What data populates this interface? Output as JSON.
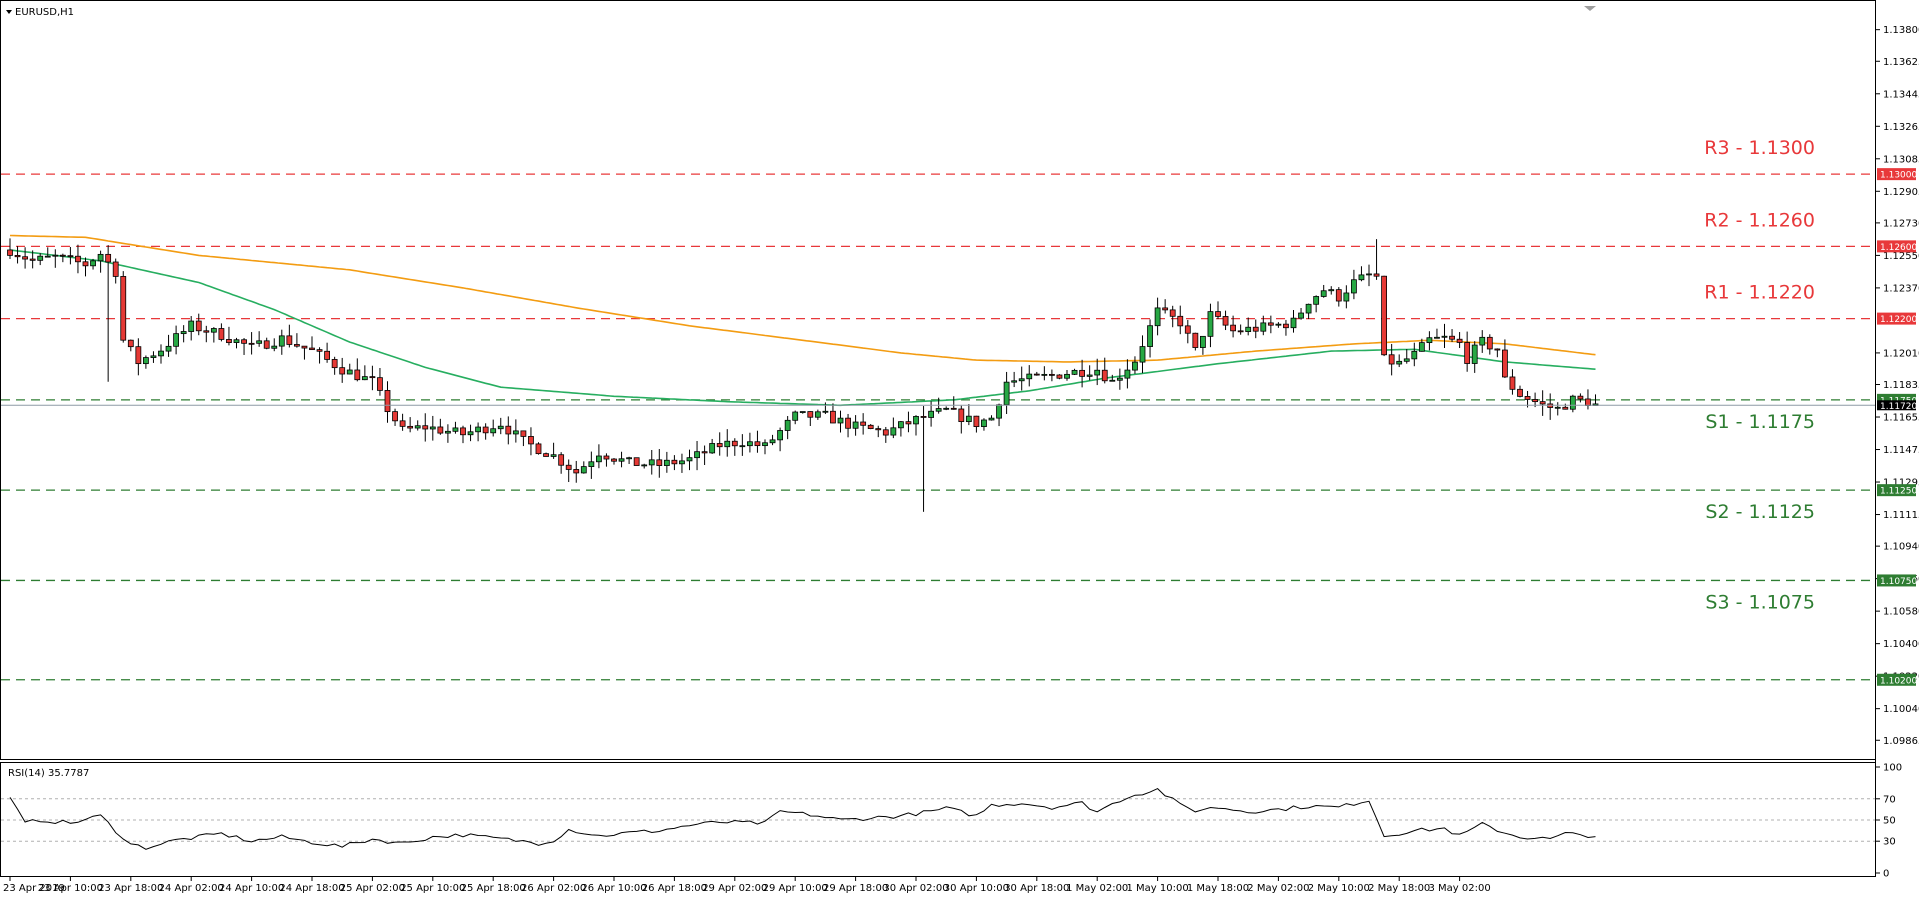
{
  "window": {
    "symbol_title": "EURUSD,H1"
  },
  "chart_data": {
    "type": "candlestick",
    "symbol": "EURUSD",
    "timeframe": "H1",
    "price_axis": {
      "ticks": [
        "1.13800",
        "1.13625",
        "1.13445",
        "1.13265",
        "1.13085",
        "1.12905",
        "1.12730",
        "1.12550",
        "1.12370",
        "1.12010",
        "1.11835",
        "1.11655",
        "1.11475",
        "1.11295",
        "1.11115",
        "1.10940",
        "1.10760",
        "1.10580",
        "1.10400",
        "1.10220",
        "1.10040",
        "1.09865"
      ],
      "range": [
        1.098,
        1.1392
      ]
    },
    "time_axis": {
      "labels": [
        "23 Apr 2019",
        "23 Apr 10:00",
        "23 Apr 18:00",
        "24 Apr 02:00",
        "24 Apr 10:00",
        "24 Apr 18:00",
        "25 Apr 02:00",
        "25 Apr 10:00",
        "25 Apr 18:00",
        "26 Apr 02:00",
        "26 Apr 10:00",
        "26 Apr 18:00",
        "29 Apr 02:00",
        "29 Apr 10:00",
        "29 Apr 18:00",
        "30 Apr 02:00",
        "30 Apr 10:00",
        "30 Apr 18:00",
        "1 May 02:00",
        "1 May 10:00",
        "1 May 18:00",
        "2 May 02:00",
        "2 May 10:00",
        "2 May 18:00",
        "3 May 02:00"
      ],
      "bars_per_label": 8,
      "bar_count": 202
    },
    "levels": [
      {
        "label": "R3 - 1.1300",
        "price": 1.13,
        "tag": "1.13000",
        "kind": "resistance",
        "color": "#e8383a"
      },
      {
        "label": "R2 - 1.1260",
        "price": 1.126,
        "tag": "1.12600",
        "kind": "resistance",
        "color": "#e8383a"
      },
      {
        "label": "R1 - 1.1220",
        "price": 1.122,
        "tag": "1.12200",
        "kind": "resistance",
        "color": "#e8383a"
      },
      {
        "label": "S1 - 1.1175",
        "price": 1.1175,
        "tag": "1.11750",
        "kind": "support",
        "color": "#2e7d32"
      },
      {
        "label": "S2 - 1.1125",
        "price": 1.1125,
        "tag": "1.11250",
        "kind": "support",
        "color": "#2e7d32"
      },
      {
        "label": "S3 - 1.1075",
        "price": 1.1075,
        "tag": "1.10750",
        "kind": "support",
        "color": "#2e7d32"
      },
      {
        "label": "",
        "price": 1.102,
        "tag": "1.10200",
        "kind": "support",
        "color": "#2e7d32"
      }
    ],
    "current_price": {
      "value": 1.1172,
      "tag": "1.11720"
    },
    "waypoints": [
      [
        0,
        1.1258
      ],
      [
        3,
        1.1252
      ],
      [
        6,
        1.1254
      ],
      [
        10,
        1.125
      ],
      [
        12,
        1.1256
      ],
      [
        14,
        1.1246
      ],
      [
        15,
        1.1208
      ],
      [
        17,
        1.1196
      ],
      [
        20,
        1.1203
      ],
      [
        24,
        1.1216
      ],
      [
        28,
        1.1211
      ],
      [
        32,
        1.1204
      ],
      [
        36,
        1.1209
      ],
      [
        40,
        1.1202
      ],
      [
        44,
        1.1192
      ],
      [
        48,
        1.1185
      ],
      [
        50,
        1.117
      ],
      [
        52,
        1.1158
      ],
      [
        55,
        1.116
      ],
      [
        60,
        1.1156
      ],
      [
        65,
        1.1162
      ],
      [
        68,
        1.1152
      ],
      [
        72,
        1.1144
      ],
      [
        75,
        1.1135
      ],
      [
        78,
        1.1146
      ],
      [
        82,
        1.114
      ],
      [
        86,
        1.1139
      ],
      [
        90,
        1.1142
      ],
      [
        94,
        1.115
      ],
      [
        97,
        1.1152
      ],
      [
        100,
        1.1149
      ],
      [
        104,
        1.1166
      ],
      [
        108,
        1.1166
      ],
      [
        112,
        1.116
      ],
      [
        116,
        1.1157
      ],
      [
        120,
        1.1164
      ],
      [
        124,
        1.1169
      ],
      [
        128,
        1.1162
      ],
      [
        130,
        1.1165
      ],
      [
        132,
        1.1185
      ],
      [
        136,
        1.1187
      ],
      [
        140,
        1.119
      ],
      [
        144,
        1.1192
      ],
      [
        146,
        1.1185
      ],
      [
        149,
        1.1197
      ],
      [
        152,
        1.1224
      ],
      [
        155,
        1.1218
      ],
      [
        157,
        1.1202
      ],
      [
        159,
        1.1222
      ],
      [
        162,
        1.1213
      ],
      [
        166,
        1.1215
      ],
      [
        170,
        1.1218
      ],
      [
        172,
        1.123
      ],
      [
        174,
        1.1236
      ],
      [
        176,
        1.1232
      ],
      [
        178,
        1.124
      ],
      [
        180,
        1.1244
      ],
      [
        181,
        1.1243
      ],
      [
        182,
        1.1197
      ],
      [
        184,
        1.1195
      ],
      [
        186,
        1.12
      ],
      [
        188,
        1.1208
      ],
      [
        190,
        1.1209
      ],
      [
        192,
        1.1206
      ],
      [
        193,
        1.1198
      ],
      [
        195,
        1.1207
      ],
      [
        197,
        1.1203
      ],
      [
        198,
        1.1186
      ],
      [
        200,
        1.1178
      ],
      [
        203,
        1.1172
      ],
      [
        205,
        1.117
      ],
      [
        207,
        1.1175
      ],
      [
        209,
        1.1174
      ],
      [
        210,
        1.1172
      ]
    ],
    "series": [
      {
        "name": "",
        "color": "#f39c12",
        "values": [
          [
            0,
            1.1266
          ],
          [
            10,
            1.1265
          ],
          [
            25,
            1.1255
          ],
          [
            45,
            1.1247
          ],
          [
            60,
            1.1237
          ],
          [
            75,
            1.1226
          ],
          [
            90,
            1.1216
          ],
          [
            105,
            1.1208
          ],
          [
            118,
            1.1201
          ],
          [
            128,
            1.1197
          ],
          [
            140,
            1.1196
          ],
          [
            152,
            1.1197
          ],
          [
            165,
            1.1202
          ],
          [
            178,
            1.1206
          ],
          [
            188,
            1.1208
          ],
          [
            198,
            1.1206
          ],
          [
            210,
            1.12
          ]
        ]
      },
      {
        "name": "",
        "color": "#27ae60",
        "values": [
          [
            0,
            1.1258
          ],
          [
            12,
            1.1252
          ],
          [
            25,
            1.124
          ],
          [
            35,
            1.1225
          ],
          [
            45,
            1.1207
          ],
          [
            55,
            1.1193
          ],
          [
            65,
            1.1182
          ],
          [
            80,
            1.1177
          ],
          [
            95,
            1.1174
          ],
          [
            110,
            1.1172
          ],
          [
            125,
            1.1175
          ],
          [
            135,
            1.118
          ],
          [
            145,
            1.1187
          ],
          [
            160,
            1.1195
          ],
          [
            175,
            1.1202
          ],
          [
            186,
            1.1203
          ],
          [
            198,
            1.1196
          ],
          [
            210,
            1.1192
          ]
        ]
      }
    ],
    "rsi": {
      "title": "RSI(14) 35.7787",
      "range": [
        0,
        100
      ],
      "ticks": [
        "100",
        "70",
        "50",
        "30",
        "0"
      ],
      "levels": [
        70,
        50,
        30
      ],
      "values": [
        [
          0,
          70
        ],
        [
          2,
          47
        ],
        [
          4,
          50
        ],
        [
          8,
          47
        ],
        [
          12,
          54
        ],
        [
          14,
          40
        ],
        [
          16,
          27
        ],
        [
          18,
          24
        ],
        [
          22,
          31
        ],
        [
          28,
          37
        ],
        [
          32,
          30
        ],
        [
          36,
          34
        ],
        [
          40,
          29
        ],
        [
          44,
          25
        ],
        [
          48,
          32
        ],
        [
          52,
          28
        ],
        [
          56,
          34
        ],
        [
          60,
          36
        ],
        [
          64,
          33
        ],
        [
          68,
          30
        ],
        [
          70,
          28
        ],
        [
          72,
          31
        ],
        [
          74,
          41
        ],
        [
          78,
          35
        ],
        [
          82,
          38
        ],
        [
          86,
          40
        ],
        [
          90,
          45
        ],
        [
          94,
          48
        ],
        [
          100,
          47
        ],
        [
          102,
          58
        ],
        [
          106,
          55
        ],
        [
          110,
          50
        ],
        [
          114,
          52
        ],
        [
          118,
          54
        ],
        [
          122,
          58
        ],
        [
          124,
          61
        ],
        [
          128,
          54
        ],
        [
          130,
          64
        ],
        [
          134,
          66
        ],
        [
          138,
          62
        ],
        [
          142,
          66
        ],
        [
          144,
          58
        ],
        [
          148,
          72
        ],
        [
          152,
          79
        ],
        [
          155,
          64
        ],
        [
          157,
          59
        ],
        [
          160,
          62
        ],
        [
          164,
          58
        ],
        [
          168,
          60
        ],
        [
          172,
          63
        ],
        [
          176,
          62
        ],
        [
          180,
          69
        ],
        [
          182,
          35
        ],
        [
          186,
          40
        ],
        [
          190,
          42
        ],
        [
          192,
          35
        ],
        [
          195,
          46
        ],
        [
          198,
          38
        ],
        [
          200,
          34
        ],
        [
          204,
          32
        ],
        [
          206,
          37
        ],
        [
          210,
          35
        ]
      ]
    }
  }
}
